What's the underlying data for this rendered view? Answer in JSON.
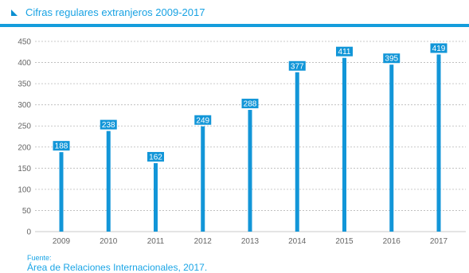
{
  "chart_data": {
    "type": "bar",
    "title": "Cifras regulares extranjeros 2009-2017",
    "categories": [
      "2009",
      "2010",
      "2011",
      "2012",
      "2013",
      "2014",
      "2015",
      "2016",
      "2017"
    ],
    "values": [
      188,
      238,
      162,
      249,
      288,
      377,
      411,
      395,
      419
    ],
    "xlabel": "",
    "ylabel": "",
    "ylim": [
      0,
      450
    ],
    "y_ticks": [
      0,
      50,
      100,
      150,
      200,
      250,
      300,
      350,
      400,
      450
    ],
    "grid": true,
    "legend": "none",
    "data_labels": true,
    "colors": {
      "bar": "#1296d8",
      "label_bg": "#1296d8",
      "label_text": "#ffffff",
      "grid": "#b8b8b8",
      "axis_text": "#666666",
      "header": "#149ddc"
    }
  },
  "source": {
    "label": "Fuente:",
    "text": "Área de Relaciones Internacionales, 2017."
  }
}
